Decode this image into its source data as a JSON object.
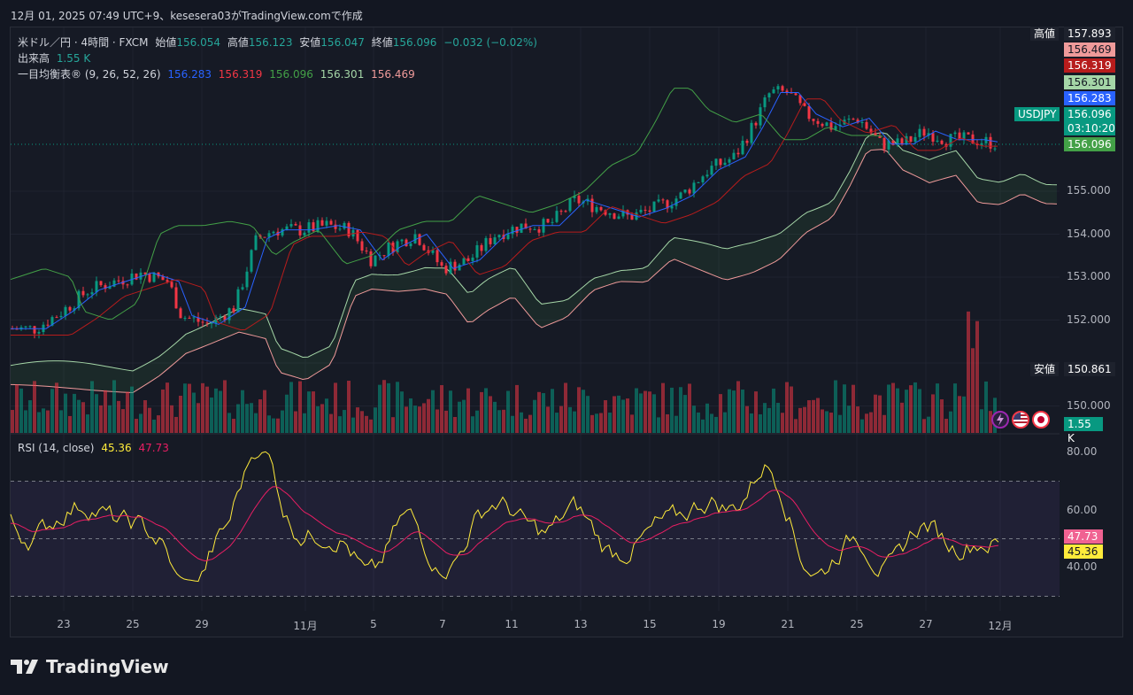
{
  "header": {
    "text": "12月 01, 2025 07:49 UTC+9、kesesera03がTradingView.comで作成"
  },
  "legend": {
    "symbol": "米ドル／円 · 4時間 · FXCM",
    "open_label": "始値",
    "open": "156.054",
    "high_label": "高値",
    "high": "156.123",
    "low_label": "安値",
    "low": "156.047",
    "close_label": "終値",
    "close": "156.096",
    "change": "−0.032 (−0.02%)",
    "volume_label": "出来高",
    "volume": "1.55 K",
    "ichimoku_label": "一目均衡表® (9, 26, 52, 26)",
    "ichimoku_values": [
      "156.283",
      "156.319",
      "156.096",
      "156.301",
      "156.469"
    ],
    "rsi_label": "RSI (14, close)",
    "rsi_values": [
      "45.36",
      "47.73"
    ]
  },
  "price_axis": [
    "155.000",
    "154.000",
    "153.000",
    "152.000",
    "150.000"
  ],
  "rsi_axis": [
    "80.00",
    "60.00",
    "40.00"
  ],
  "tags": {
    "high_label": "高値",
    "high_value": "157.893",
    "low_label": "安値",
    "low_value": "150.861",
    "usdjpy_label": "USDJPY",
    "price_values": [
      "156.469",
      "156.319",
      "156.301",
      "156.283",
      "156.096"
    ],
    "countdown": "03:10:20",
    "last_price": "156.096",
    "volume_tag": "1.55 K",
    "rsi_tags": [
      "47.73",
      "45.36"
    ]
  },
  "dates": [
    "23",
    "25",
    "29",
    "11月",
    "5",
    "7",
    "11",
    "13",
    "15",
    "19",
    "21",
    "25",
    "27",
    "12月"
  ],
  "brand": {
    "name": "TradingView"
  },
  "colors": {
    "bg": "#131722",
    "up": "#089981",
    "down": "#f23645",
    "tenkan": "#2962ff",
    "kijun": "#b71c1c",
    "chikou": "#43a047",
    "spanA": "#a5d6a7",
    "spanB": "#ef9a9a",
    "rsi": "#ffeb3b",
    "rsi_ma": "#e91e63"
  }
}
